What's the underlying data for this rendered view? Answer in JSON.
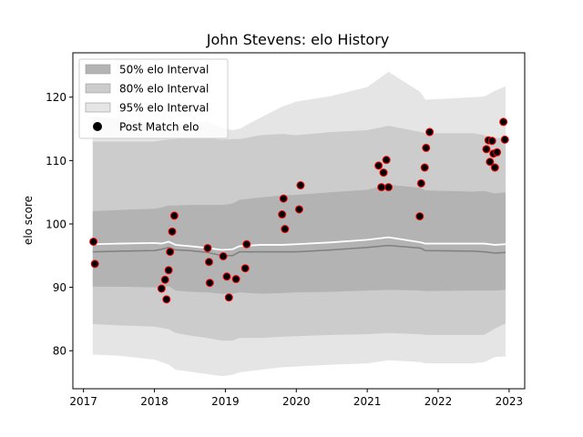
{
  "chart_data": {
    "type": "scatter",
    "title": "John Stevens: elo History",
    "xlabel": "",
    "ylabel": "elo score",
    "xlim": [
      2016.85,
      2023.22
    ],
    "ylim": [
      74,
      127
    ],
    "x_ticks": [
      2017,
      2018,
      2019,
      2020,
      2021,
      2022,
      2023
    ],
    "y_ticks": [
      80,
      90,
      100,
      110,
      120
    ],
    "grid": false,
    "legend_position": "top-left",
    "legend": [
      {
        "label": "50% elo Interval",
        "kind": "band",
        "color": "#b3b3b3"
      },
      {
        "label": "80% elo Interval",
        "kind": "band",
        "color": "#cccccc"
      },
      {
        "label": "95% elo Interval",
        "kind": "band",
        "color": "#e5e5e5"
      },
      {
        "label": "Post Match elo",
        "kind": "marker",
        "color": "#000000"
      }
    ],
    "colors": {
      "band50": "#b3b3b3",
      "band80": "#cccccc",
      "band95": "#e5e5e5",
      "mean_line": "#ffffff",
      "median_line": "#808080",
      "marker_fill": "#000000",
      "marker_edge": "#ff0000"
    },
    "intervals": {
      "x": [
        2017.13,
        2017.5,
        2018.0,
        2018.1,
        2018.2,
        2018.3,
        2018.5,
        2018.75,
        2018.95,
        2019.1,
        2019.2,
        2019.5,
        2019.8,
        2020.0,
        2020.5,
        2021.0,
        2021.3,
        2021.75,
        2021.82,
        2022.5,
        2022.65,
        2022.8,
        2022.95
      ],
      "mean": [
        96.8,
        96.9,
        97.0,
        96.9,
        97.2,
        96.7,
        96.5,
        96.2,
        95.9,
        96.0,
        96.5,
        96.7,
        96.7,
        96.8,
        97.1,
        97.5,
        97.9,
        97.1,
        96.9,
        96.9,
        96.9,
        96.7,
        96.8
      ],
      "median": [
        95.6,
        95.7,
        95.8,
        96.0,
        96.3,
        95.9,
        95.8,
        95.5,
        95.0,
        95.0,
        95.6,
        95.6,
        95.6,
        95.6,
        95.9,
        96.3,
        96.6,
        96.2,
        95.8,
        95.7,
        95.6,
        95.4,
        95.5
      ],
      "p50_low": [
        90.1,
        90.1,
        90.0,
        90.0,
        90.2,
        89.5,
        89.3,
        89.2,
        89.0,
        89.0,
        89.2,
        89.0,
        89.1,
        89.2,
        89.3,
        89.5,
        89.6,
        89.5,
        89.4,
        89.5,
        89.5,
        89.5,
        89.6
      ],
      "p50_high": [
        102.0,
        102.2,
        102.4,
        102.6,
        102.9,
        102.9,
        103.0,
        103.0,
        103.0,
        103.2,
        103.8,
        104.2,
        104.5,
        104.6,
        105.0,
        105.4,
        106.2,
        105.7,
        105.3,
        105.1,
        105.2,
        104.8,
        105.0
      ],
      "p80_low": [
        84.2,
        84.0,
        83.8,
        83.6,
        83.4,
        82.8,
        82.4,
        82.0,
        81.6,
        81.6,
        82.0,
        82.0,
        82.2,
        82.3,
        82.5,
        82.6,
        82.8,
        82.6,
        82.5,
        82.5,
        82.5,
        83.5,
        84.3
      ],
      "p80_high": [
        113.0,
        113.0,
        113.0,
        113.2,
        113.3,
        113.4,
        113.5,
        113.5,
        113.3,
        113.4,
        113.4,
        114.0,
        114.2,
        114.0,
        114.5,
        114.8,
        115.5,
        114.5,
        114.3,
        114.3,
        114.0,
        113.6,
        113.5
      ],
      "p95_low": [
        79.4,
        79.2,
        78.6,
        78.2,
        77.8,
        77.0,
        76.7,
        76.3,
        76.0,
        76.2,
        76.6,
        77.0,
        77.4,
        77.5,
        77.8,
        78.0,
        78.5,
        78.2,
        78.0,
        78.0,
        78.2,
        79.0,
        79.1
      ],
      "p95_high": [
        117.0,
        116.5,
        115.8,
        115.8,
        115.8,
        115.7,
        115.8,
        116.2,
        115.2,
        114.8,
        115.0,
        116.8,
        118.5,
        119.3,
        120.2,
        121.6,
        124.0,
        120.8,
        119.6,
        120.0,
        120.1,
        121.0,
        121.7
      ]
    },
    "points": {
      "x": [
        2017.14,
        2017.16,
        2018.1,
        2018.15,
        2018.17,
        2018.2,
        2018.22,
        2018.25,
        2018.28,
        2018.75,
        2018.77,
        2018.78,
        2018.97,
        2019.02,
        2019.05,
        2019.15,
        2019.28,
        2019.3,
        2019.8,
        2019.82,
        2019.84,
        2020.04,
        2020.06,
        2021.16,
        2021.2,
        2021.23,
        2021.27,
        2021.3,
        2021.74,
        2021.76,
        2021.81,
        2021.83,
        2021.88,
        2022.68,
        2022.71,
        2022.73,
        2022.76,
        2022.78,
        2022.8,
        2022.83,
        2022.92,
        2022.94
      ],
      "y": [
        97.2,
        93.7,
        89.8,
        91.2,
        88.1,
        92.7,
        95.6,
        98.8,
        101.3,
        96.2,
        94.0,
        90.7,
        94.9,
        91.7,
        88.4,
        91.3,
        93.0,
        96.8,
        101.5,
        104.0,
        99.2,
        102.3,
        106.1,
        109.2,
        105.8,
        108.1,
        110.1,
        105.8,
        101.2,
        106.4,
        108.9,
        112.0,
        114.5,
        111.8,
        113.2,
        109.8,
        113.1,
        111.1,
        108.9,
        111.3,
        116.1,
        113.3
      ]
    }
  }
}
